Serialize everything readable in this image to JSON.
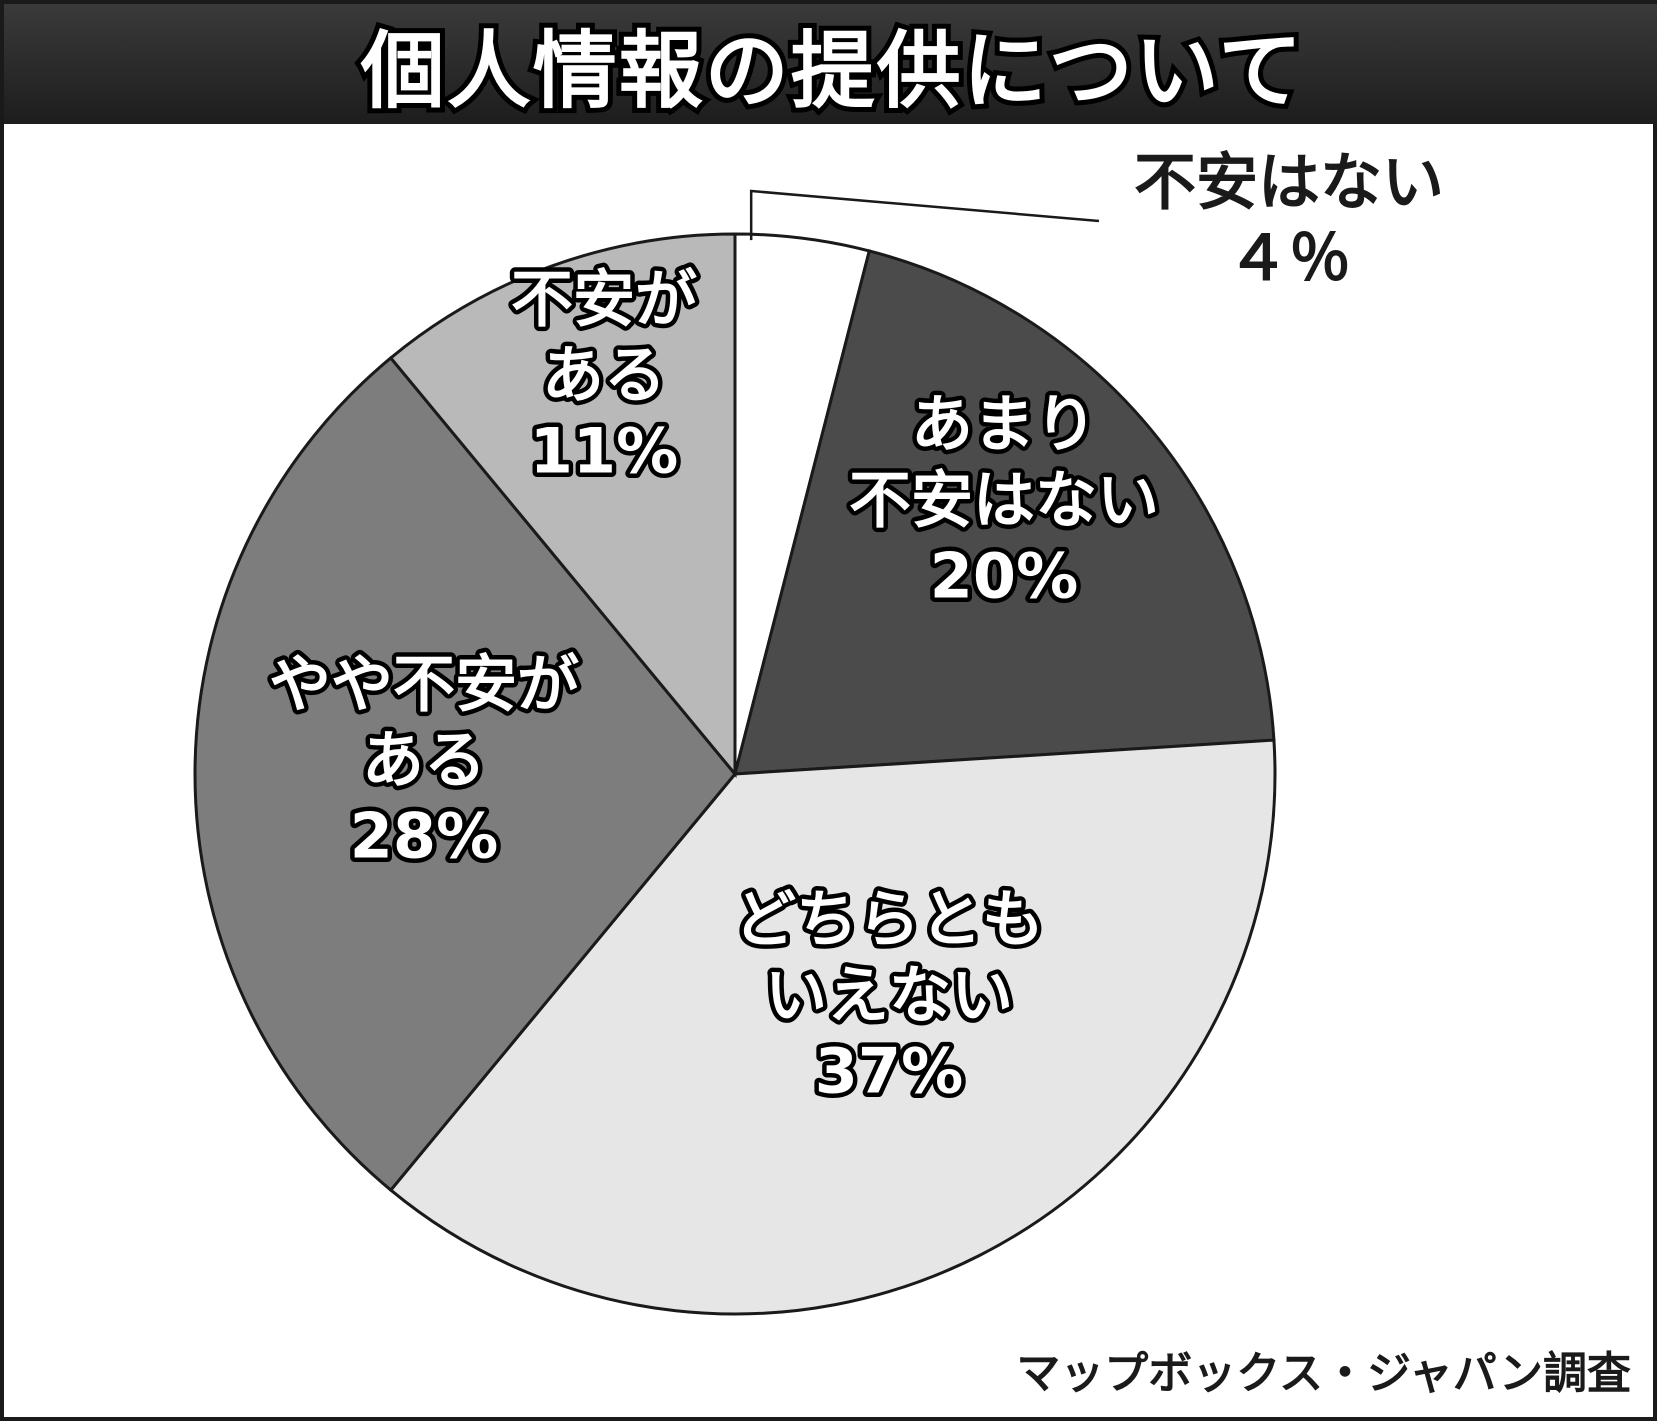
{
  "chart_data": {
    "type": "pie",
    "title": "個人情報の提供について",
    "source": "マップボックス・ジャパン調査",
    "slices": [
      {
        "lines": [
          "不安はない"
        ],
        "value_label": "４％",
        "value": 4,
        "color": "#ffffff",
        "outside": true
      },
      {
        "lines": [
          "あまり",
          "不安はない"
        ],
        "value_label": "20%",
        "value": 20,
        "color": "#4b4b4b"
      },
      {
        "lines": [
          "どちらとも",
          "いえない"
        ],
        "value_label": "37%",
        "value": 37,
        "color": "#e6e6e6"
      },
      {
        "lines": [
          "やや不安が",
          "ある"
        ],
        "value_label": "28%",
        "value": 28,
        "color": "#7d7d7d"
      },
      {
        "lines": [
          "不安が",
          "ある"
        ],
        "value_label": "11%",
        "value": 11,
        "color": "#b9b9b9"
      }
    ]
  }
}
